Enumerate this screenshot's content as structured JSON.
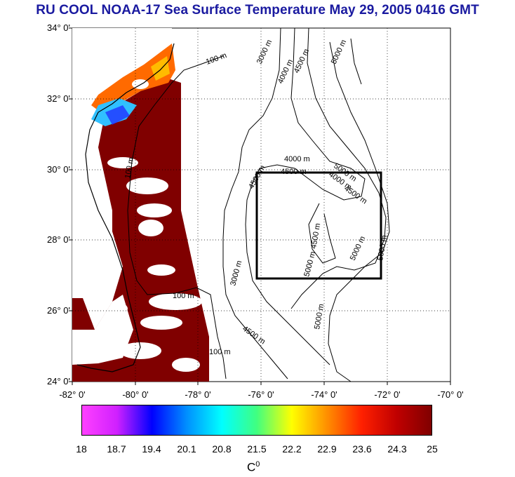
{
  "title": "RU COOL  NOAA-17 Sea Surface Temperature May 29, 2005 0416 GMT",
  "map": {
    "lon_range": [
      -82,
      -70
    ],
    "lat_range": [
      24,
      34
    ],
    "lat_ticks": [
      "34° 0'",
      "32° 0'",
      "30° 0'",
      "28° 0'",
      "26° 0'",
      "24° 0'"
    ],
    "lon_ticks": [
      "-82° 0'",
      "-80° 0'",
      "-78° 0'",
      "-76° 0'",
      "-74° 0'",
      "-72° 0'",
      "-70° 0'"
    ],
    "study_box": {
      "lon": [
        -76,
        -72
      ],
      "lat": [
        27,
        30
      ]
    },
    "contour_labels": [
      "100 m",
      "3000 m",
      "4000 m",
      "4500 m",
      "5000 m",
      "4000 m",
      "4500 m",
      "5000 m",
      "4500 m",
      "4000 m",
      "5000 m",
      "4500 m",
      "5000 m",
      "5000 m",
      "3000 m",
      "100 m",
      "5000 m",
      "4500 m",
      "100 m",
      "4500 m",
      "100 m"
    ]
  },
  "colorbar": {
    "ticks": [
      "18",
      "18.7",
      "19.4",
      "20.1",
      "20.8",
      "21.5",
      "22.2",
      "22.9",
      "23.6",
      "24.3",
      "25"
    ],
    "unit_base": "C",
    "unit_sup": "0",
    "colors": [
      "#ff40ff",
      "#d020ff",
      "#0000ff",
      "#0090ff",
      "#00ffff",
      "#40ff80",
      "#ffff00",
      "#ff9000",
      "#ff2000",
      "#c00000",
      "#800000"
    ]
  }
}
